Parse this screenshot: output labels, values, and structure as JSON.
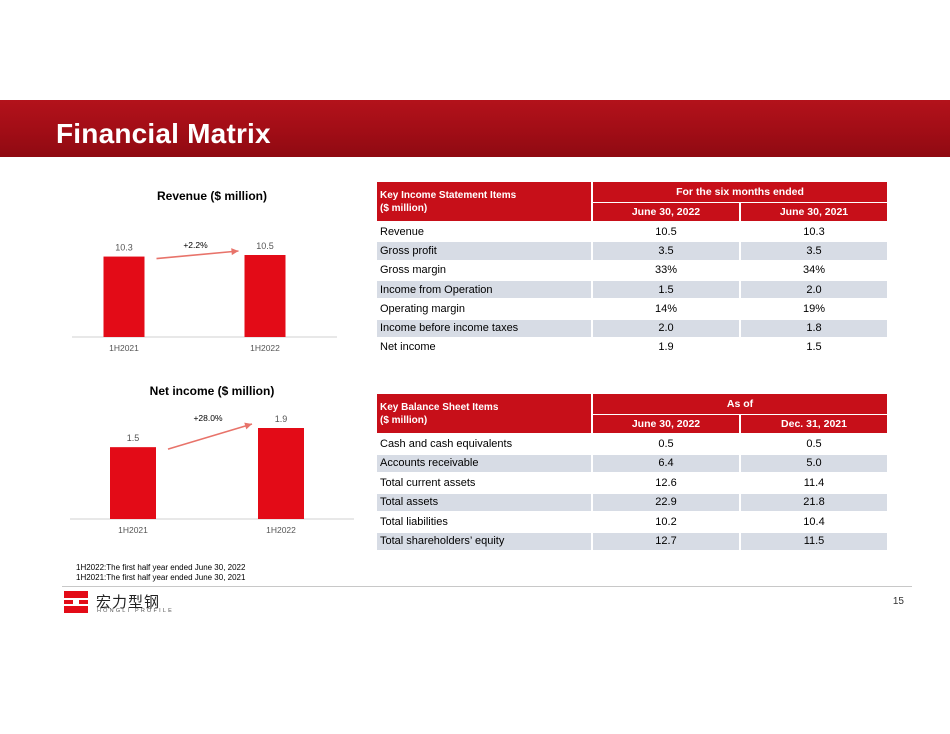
{
  "title": "Financial Matrix",
  "chart_data": [
    {
      "type": "bar",
      "title": "Revenue ($ million)",
      "categories": [
        "1H2021",
        "1H2022"
      ],
      "values": [
        10.3,
        10.5
      ],
      "value_labels": [
        "10.3",
        "10.5"
      ],
      "growth_label": "+2.2%",
      "bar_color": "#e30b17",
      "arrow_color": "#e8736a"
    },
    {
      "type": "bar",
      "title": "Net income ($ million)",
      "categories": [
        "1H2021",
        "1H2022"
      ],
      "values": [
        1.5,
        1.9
      ],
      "value_labels": [
        "1.5",
        "1.9"
      ],
      "growth_label": "+28.0%",
      "bar_color": "#e30b17",
      "arrow_color": "#e8736a"
    }
  ],
  "income_table": {
    "header_label_line1": "Key Income Statement Items",
    "header_label_line2": "($ million)",
    "group_header": "For the six months ended",
    "columns": [
      "June 30, 2022",
      "June 30, 2021"
    ],
    "rows": [
      {
        "label": "Revenue",
        "v1": "10.5",
        "v2": "10.3"
      },
      {
        "label": "Gross profit",
        "v1": "3.5",
        "v2": "3.5"
      },
      {
        "label": "Gross margin",
        "v1": "33%",
        "v2": "34%"
      },
      {
        "label": "Income from Operation",
        "v1": "1.5",
        "v2": "2.0"
      },
      {
        "label": "Operating margin",
        "v1": "14%",
        "v2": "19%"
      },
      {
        "label": "Income before income taxes",
        "v1": "2.0",
        "v2": "1.8"
      },
      {
        "label": "Net income",
        "v1": "1.9",
        "v2": "1.5"
      }
    ]
  },
  "balance_table": {
    "header_label_line1": "Key Balance Sheet Items",
    "header_label_line2": "($ million)",
    "group_header": "As of",
    "columns": [
      "June 30, 2022",
      "Dec. 31, 2021"
    ],
    "rows": [
      {
        "label": "Cash and cash equivalents",
        "v1": "0.5",
        "v2": "0.5"
      },
      {
        "label": "Accounts receivable",
        "v1": "6.4",
        "v2": "5.0"
      },
      {
        "label": "Total current assets",
        "v1": "12.6",
        "v2": "11.4"
      },
      {
        "label": "Total assets",
        "v1": "22.9",
        "v2": "21.8"
      },
      {
        "label": "Total liabilities",
        "v1": "10.2",
        "v2": "10.4"
      },
      {
        "label": "Total shareholders’ equity",
        "v1": "12.7",
        "v2": "11.5"
      }
    ]
  },
  "footnotes": [
    "1H2022:The first half year ended June 30, 2022",
    "1H2021:The first half year ended June 30, 2021"
  ],
  "logo": {
    "name_cn": "宏力型钢",
    "name_en": "HONGLI PROFILE",
    "color": "#e30b17"
  },
  "page_number": "15"
}
